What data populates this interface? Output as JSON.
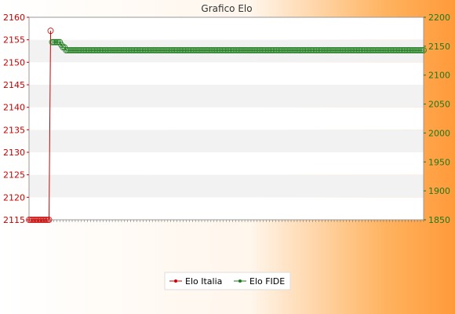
{
  "chart_data": {
    "type": "line",
    "title": "Grafico Elo",
    "xlabel": "",
    "ylabel": "",
    "y_left": {
      "range": [
        2115,
        2160
      ],
      "ticks": [
        2115,
        2120,
        2125,
        2130,
        2135,
        2140,
        2145,
        2150,
        2155,
        2160
      ]
    },
    "y_right": {
      "range": [
        1850,
        2200
      ],
      "ticks": [
        1850,
        1900,
        1950,
        2000,
        2050,
        2100,
        2150,
        2200
      ]
    },
    "grid": "horizontal bands",
    "legend_position": "bottom-center",
    "series": [
      {
        "name": "Elo Italia",
        "axis": "left",
        "color": "#cc0000",
        "values": [
          2115,
          2115,
          2115,
          2115,
          2115,
          2115,
          2115,
          2115,
          2115,
          2115,
          2115,
          2115,
          2115,
          2115,
          2157
        ]
      },
      {
        "name": "Elo FIDE",
        "axis": "right",
        "color": "#1a7a1a",
        "start_index": 15,
        "values": [
          2157,
          2157,
          2157,
          2157,
          2157,
          2157,
          2152,
          2148,
          2148,
          2143,
          2143,
          2143,
          2143,
          2143,
          2143,
          2143,
          2143,
          2143,
          2143,
          2143,
          2143,
          2143,
          2143,
          2143,
          2143,
          2143,
          2143,
          2143,
          2143,
          2143,
          2143,
          2143,
          2143,
          2143,
          2143,
          2143,
          2143,
          2143,
          2143,
          2143,
          2143,
          2143,
          2143,
          2143,
          2143,
          2143,
          2143,
          2143,
          2143,
          2143,
          2143,
          2143,
          2143,
          2143,
          2143,
          2143,
          2143,
          2143,
          2143,
          2143,
          2143,
          2143,
          2143,
          2143,
          2143,
          2143,
          2143,
          2143,
          2143,
          2143,
          2143,
          2143,
          2143,
          2143,
          2143,
          2143,
          2143,
          2143,
          2143,
          2143,
          2143,
          2143,
          2143,
          2143,
          2143,
          2143,
          2143,
          2143,
          2143,
          2143,
          2143,
          2143,
          2143,
          2143,
          2143,
          2143,
          2143,
          2143,
          2143,
          2143,
          2143,
          2143,
          2143,
          2143,
          2143,
          2143,
          2143,
          2143,
          2143,
          2143,
          2143,
          2143,
          2143,
          2143,
          2143,
          2143,
          2143,
          2143,
          2143,
          2143,
          2143,
          2143,
          2143,
          2143,
          2143,
          2143,
          2143,
          2143,
          2143,
          2143,
          2143,
          2143,
          2143,
          2143,
          2143,
          2143,
          2143,
          2143,
          2143,
          2143,
          2143,
          2143,
          2143,
          2143,
          2143,
          2143,
          2143,
          2143,
          2143,
          2143,
          2143,
          2143,
          2143,
          2143,
          2143,
          2143,
          2143,
          2143,
          2143,
          2143,
          2143,
          2143,
          2143,
          2143,
          2143,
          2143,
          2143,
          2143,
          2143,
          2143,
          2143,
          2143,
          2143,
          2143,
          2143,
          2143,
          2143,
          2143,
          2143,
          2143,
          2143,
          2143,
          2143,
          2143,
          2143,
          2143,
          2143,
          2143,
          2143,
          2143,
          2143,
          2143,
          2143,
          2143,
          2143,
          2143,
          2143,
          2143,
          2143,
          2143,
          2143,
          2143,
          2143,
          2143,
          2143,
          2143,
          2143,
          2143,
          2143,
          2143,
          2143,
          2143,
          2143,
          2143,
          2143,
          2143,
          2143,
          2143,
          2143,
          2143,
          2143,
          2143,
          2143,
          2143,
          2143,
          2143,
          2143,
          2143,
          2143,
          2143,
          2143,
          2143,
          2143,
          2143,
          2143,
          2143,
          2143,
          2143,
          2143,
          2143,
          2143,
          2143
        ]
      }
    ]
  }
}
